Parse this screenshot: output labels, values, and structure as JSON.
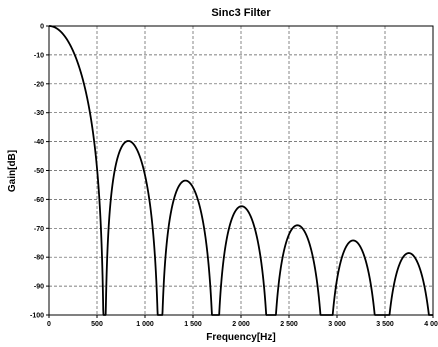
{
  "chart_data": {
    "type": "line",
    "title": "Sinc3 Filter",
    "xlabel": "Frequency[Hz]",
    "ylabel": "Gain[dB]",
    "xlim": [
      0,
      4000
    ],
    "ylim": [
      -100,
      0
    ],
    "x_ticks": [
      0,
      500,
      1000,
      1500,
      2000,
      2500,
      3000,
      3500,
      4000
    ],
    "x_tick_labels": [
      "0",
      "500",
      "1 000",
      "1 500",
      "2 000",
      "2 500",
      "3 000",
      "3 500",
      "4 000"
    ],
    "y_ticks": [
      0,
      -10,
      -20,
      -30,
      -40,
      -50,
      -60,
      -70,
      -80,
      -90,
      -100
    ],
    "y_tick_labels": [
      "0",
      "-10",
      "-20",
      "-30",
      "-40",
      "-50",
      "-60",
      "-70",
      "-80",
      "-90",
      "-100"
    ],
    "grid": true,
    "series": [
      {
        "model": "sinc3",
        "null_spacing_hz": 578,
        "points": [
          [
            0,
            0
          ],
          [
            289,
            -11.9
          ],
          [
            578,
            -100
          ],
          [
            830,
            -40.2
          ],
          [
            1156,
            -100
          ],
          [
            1430,
            -53.3
          ],
          [
            1734,
            -100
          ],
          [
            2020,
            -62.1
          ],
          [
            2312,
            -100
          ],
          [
            2590,
            -68.8
          ],
          [
            2890,
            -100
          ],
          [
            3160,
            -74.1
          ],
          [
            3468,
            -100
          ],
          [
            3750,
            -78.4
          ],
          [
            4000,
            -100
          ]
        ]
      }
    ]
  }
}
